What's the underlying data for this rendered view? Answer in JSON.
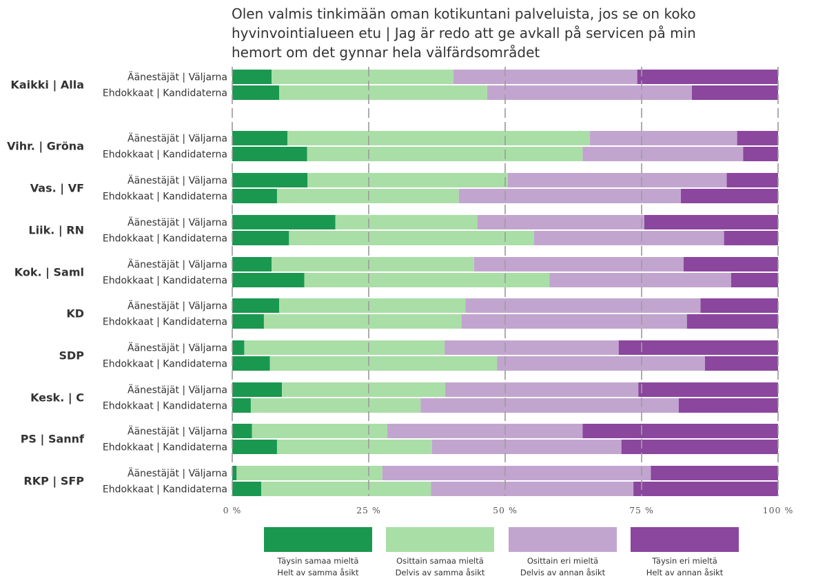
{
  "chart_data": {
    "type": "bar",
    "orientation": "horizontal-stacked-100",
    "title_lines": [
      "Olen valmis tinkimään oman kotikuntani palveluista, jos se on koko",
      "hyvinvointialueen etu | Jag är redo att ge avkall på servicen på min",
      "hemort om det gynnar hela välfärdsområdet"
    ],
    "row_labels": {
      "voters": "Äänestäjät | Väljarna",
      "candidates": "Ehdokkaat | Kandidaterna"
    },
    "xlim": [
      0,
      100
    ],
    "x_ticks": [
      0,
      25,
      50,
      75,
      100
    ],
    "x_tick_labels": [
      "0 %",
      "25 %",
      "50 %",
      "75 %",
      "100 %"
    ],
    "colors": [
      "#1a9850",
      "#aadea7",
      "#c2a5cf",
      "#8b469e"
    ],
    "legend": [
      {
        "fi": "Täysin samaa mieltä",
        "sv": "Helt av samma åsikt",
        "color": "#1a9850"
      },
      {
        "fi": "Osittain samaa mieltä",
        "sv": "Delvis av samma åsikt",
        "color": "#aadea7"
      },
      {
        "fi": "Osittain eri mieltä",
        "sv": "Delvis av annan åsikt",
        "color": "#c2a5cf"
      },
      {
        "fi": "Täysin eri mieltä",
        "sv": "Helt av annan åsikt",
        "color": "#8b469e"
      }
    ],
    "groups": [
      {
        "name": "Kaikki | Alla",
        "voters": [
          7.2,
          33.3,
          33.7,
          25.8
        ],
        "candidates": [
          8.6,
          38.1,
          37.5,
          15.8
        ]
      },
      {
        "name": "Vihr. | Gröna",
        "voters": [
          10.1,
          55.4,
          27.0,
          7.5
        ],
        "candidates": [
          13.7,
          50.5,
          29.4,
          6.4
        ]
      },
      {
        "name": "Vas. | VF",
        "voters": [
          13.8,
          36.7,
          40.1,
          9.4
        ],
        "candidates": [
          8.2,
          33.3,
          40.7,
          17.8
        ]
      },
      {
        "name": "Liik. | RN",
        "voters": [
          18.9,
          26.0,
          30.6,
          24.5
        ],
        "candidates": [
          10.4,
          44.9,
          34.8,
          9.9
        ]
      },
      {
        "name": "Kok. | Saml",
        "voters": [
          7.2,
          37.1,
          38.4,
          17.3
        ],
        "candidates": [
          13.2,
          44.9,
          33.3,
          8.6
        ]
      },
      {
        "name": "KD",
        "voters": [
          8.6,
          34.1,
          43.1,
          14.2
        ],
        "candidates": [
          5.8,
          36.2,
          41.3,
          16.7
        ]
      },
      {
        "name": "SDP",
        "voters": [
          2.2,
          36.7,
          31.9,
          29.2
        ],
        "candidates": [
          6.9,
          41.6,
          38.1,
          13.4
        ]
      },
      {
        "name": "Kesk. | C",
        "voters": [
          9.1,
          29.9,
          35.4,
          25.6
        ],
        "candidates": [
          3.4,
          31.1,
          47.3,
          18.2
        ]
      },
      {
        "name": "PS | Sannf",
        "voters": [
          3.6,
          24.8,
          35.8,
          35.8
        ],
        "candidates": [
          8.2,
          28.4,
          34.7,
          28.7
        ]
      },
      {
        "name": "RKP | SFP",
        "voters": [
          0.8,
          26.7,
          49.2,
          23.3
        ],
        "candidates": [
          5.3,
          31.1,
          37.1,
          26.5
        ]
      }
    ]
  }
}
